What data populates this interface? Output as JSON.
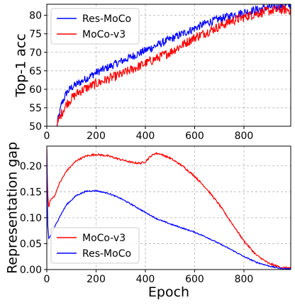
{
  "chart_data": [
    {
      "type": "line",
      "xlabel": "",
      "ylabel": "Top-1 acc",
      "xlim": [
        0,
        990
      ],
      "ylim": [
        50,
        83
      ],
      "xticks": [
        0,
        200,
        400,
        600,
        800
      ],
      "yticks": [
        50,
        55,
        60,
        65,
        70,
        75,
        80
      ],
      "grid": true,
      "legend_position": "top-left",
      "series": [
        {
          "name": "Res-MoCo",
          "color": "#0000ff",
          "noise": 1.1,
          "x": [
            40,
            60,
            80,
            100,
            125,
            150,
            200,
            250,
            300,
            350,
            400,
            450,
            500,
            550,
            600,
            650,
            700,
            750,
            800,
            850,
            900,
            950,
            990
          ],
          "y": [
            50,
            56,
            59,
            60.5,
            61.5,
            62.5,
            64.5,
            66,
            67.5,
            69,
            70.5,
            72,
            73.5,
            75,
            76.5,
            78,
            79,
            80,
            80.8,
            81.5,
            82.2,
            82.5,
            82.7
          ]
        },
        {
          "name": "MoCo-v3",
          "color": "#ff0000",
          "noise": 1.3,
          "x": [
            40,
            60,
            80,
            100,
            125,
            150,
            200,
            250,
            300,
            350,
            400,
            450,
            500,
            550,
            600,
            650,
            700,
            750,
            800,
            850,
            900,
            950,
            990
          ],
          "y": [
            50,
            53.5,
            56,
            57.5,
            59,
            60,
            61.5,
            62.8,
            64,
            65.5,
            67,
            68.5,
            70,
            72,
            74,
            75.5,
            77,
            78.5,
            79.5,
            80.5,
            81.2,
            81.5,
            81.5
          ]
        }
      ]
    },
    {
      "type": "line",
      "xlabel": "Epoch",
      "ylabel": "Representation gap",
      "xlim": [
        0,
        990
      ],
      "ylim": [
        0,
        0.238
      ],
      "xticks": [
        0,
        200,
        400,
        600,
        800
      ],
      "yticks": [
        0.0,
        0.05,
        0.1,
        0.15,
        0.2
      ],
      "ytick_labels": [
        "0.00",
        "0.05",
        "0.10",
        "0.15",
        "0.20"
      ],
      "grid": true,
      "legend_position": "bottom-left",
      "series": [
        {
          "name": "MoCo-v3",
          "color": "#ff0000",
          "noise": 0.0018,
          "x": [
            0,
            3,
            8,
            15,
            30,
            50,
            80,
            120,
            160,
            200,
            250,
            300,
            350,
            380,
            400,
            420,
            440,
            460,
            500,
            550,
            600,
            650,
            700,
            750,
            800,
            850,
            900,
            950,
            990
          ],
          "y": [
            0.235,
            0.15,
            0.12,
            0.135,
            0.14,
            0.165,
            0.19,
            0.21,
            0.219,
            0.222,
            0.219,
            0.212,
            0.206,
            0.205,
            0.208,
            0.218,
            0.224,
            0.223,
            0.215,
            0.2,
            0.18,
            0.155,
            0.125,
            0.09,
            0.055,
            0.028,
            0.012,
            0.004,
            0.003
          ]
        },
        {
          "name": "Res-MoCo",
          "color": "#0000ff",
          "noise": 0.0012,
          "x": [
            0,
            3,
            8,
            15,
            30,
            50,
            80,
            120,
            160,
            200,
            250,
            300,
            350,
            400,
            450,
            500,
            550,
            600,
            650,
            700,
            750,
            800,
            850,
            900,
            950,
            990
          ],
          "y": [
            0.23,
            0.09,
            0.06,
            0.065,
            0.08,
            0.1,
            0.125,
            0.143,
            0.151,
            0.152,
            0.147,
            0.137,
            0.124,
            0.11,
            0.097,
            0.088,
            0.08,
            0.072,
            0.062,
            0.05,
            0.038,
            0.025,
            0.014,
            0.007,
            0.002,
            0.001
          ]
        }
      ]
    }
  ]
}
